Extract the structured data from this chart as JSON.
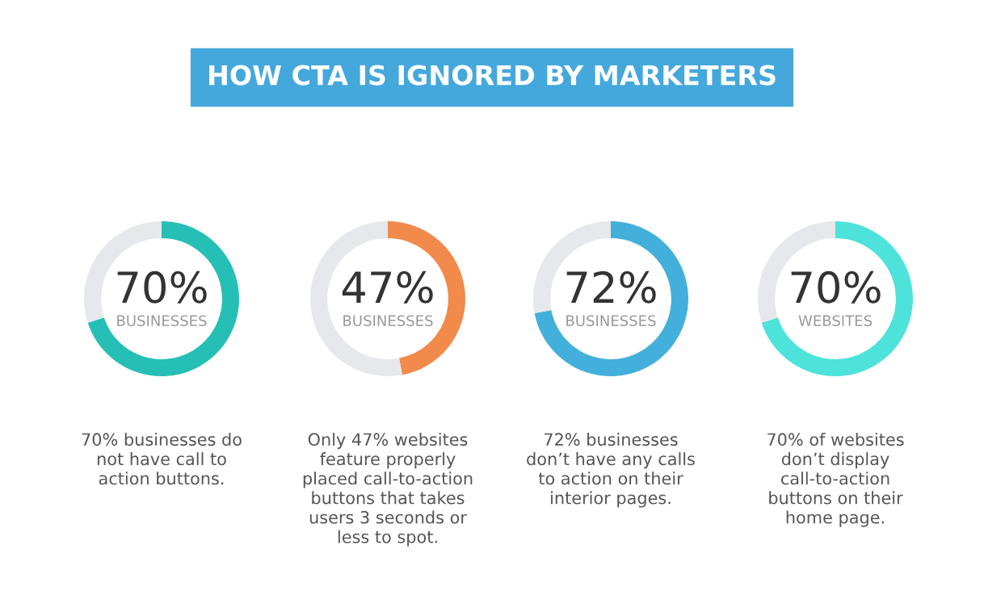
{
  "chart_data": [
    {
      "type": "donut",
      "title": "HOW CTA IS IGNORED BY MARKETERS",
      "categories": [
        "BUSINESSES",
        null
      ],
      "values": [
        70,
        30
      ],
      "colors": [
        "#26bfb5",
        "#e6e8eb"
      ],
      "value_labels": [
        "70%",
        null
      ],
      "annotations": [
        "70% businesses do\nnot have call to\naction buttons."
      ]
    },
    {
      "type": "donut",
      "categories": [
        "BUSINESSES",
        null
      ],
      "values": [
        47,
        53
      ],
      "colors": [
        "#f28a4b",
        "#e6e8eb"
      ],
      "value_labels": [
        "47%",
        null
      ],
      "annotations": [
        "Only 47% websites\nfeature properly\nplaced call-to-action\nbuttons that takes\nusers 3 seconds or\nless to spot."
      ]
    },
    {
      "type": "donut",
      "categories": [
        "BUSINESSES",
        null
      ],
      "values": [
        72,
        28
      ],
      "colors": [
        "#43b0dc",
        "#e6e8eb"
      ],
      "value_labels": [
        "72%",
        null
      ],
      "annotations": [
        "72% businesses\ndon’t have any calls\nto action on their\ninterior pages."
      ]
    },
    {
      "type": "donut",
      "categories": [
        "WEBSITES",
        null
      ],
      "values": [
        70,
        30
      ],
      "colors": [
        "#4de3da",
        "#e6e8eb"
      ],
      "value_labels": [
        "70%",
        null
      ],
      "annotations": [
        "70% of websites\ndon’t display\ncall-to-action\nbuttons on their\nhome page."
      ]
    }
  ]
}
